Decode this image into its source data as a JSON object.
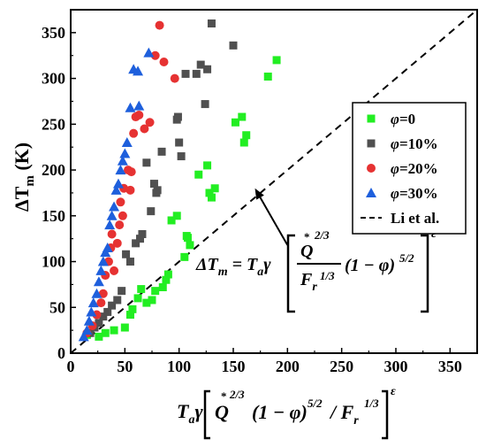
{
  "chart_data": {
    "type": "scatter",
    "xlim": [
      0,
      375
    ],
    "ylim": [
      0,
      375
    ],
    "x_ticks": [
      "0",
      "50",
      "100",
      "150",
      "200",
      "250",
      "300",
      "350"
    ],
    "y_ticks": [
      "0",
      "50",
      "100",
      "150",
      "200",
      "250",
      "300",
      "350"
    ],
    "grid": false,
    "legend_position": "right",
    "series": [
      {
        "name": "φ=0",
        "marker": "square",
        "color": "#22ee22",
        "points": [
          [
            15,
            20
          ],
          [
            26,
            18
          ],
          [
            32,
            22
          ],
          [
            40,
            25
          ],
          [
            50,
            28
          ],
          [
            55,
            42
          ],
          [
            57,
            48
          ],
          [
            62,
            60
          ],
          [
            65,
            70
          ],
          [
            70,
            55
          ],
          [
            75,
            58
          ],
          [
            78,
            68
          ],
          [
            85,
            72
          ],
          [
            88,
            80
          ],
          [
            90,
            86
          ],
          [
            93,
            145
          ],
          [
            98,
            150
          ],
          [
            105,
            105
          ],
          [
            107,
            128
          ],
          [
            108,
            126
          ],
          [
            110,
            118
          ],
          [
            118,
            195
          ],
          [
            126,
            205
          ],
          [
            128,
            175
          ],
          [
            133,
            180
          ],
          [
            130,
            170
          ],
          [
            152,
            252
          ],
          [
            158,
            258
          ],
          [
            160,
            230
          ],
          [
            162,
            238
          ],
          [
            182,
            302
          ],
          [
            190,
            320
          ]
        ]
      },
      {
        "name": "φ=10%",
        "marker": "square",
        "color": "#505050",
        "points": [
          [
            18,
            22
          ],
          [
            22,
            28
          ],
          [
            26,
            33
          ],
          [
            30,
            40
          ],
          [
            34,
            45
          ],
          [
            38,
            52
          ],
          [
            43,
            58
          ],
          [
            47,
            68
          ],
          [
            51,
            108
          ],
          [
            55,
            100
          ],
          [
            60,
            120
          ],
          [
            64,
            125
          ],
          [
            66,
            130
          ],
          [
            70,
            208
          ],
          [
            74,
            155
          ],
          [
            77,
            185
          ],
          [
            79,
            175
          ],
          [
            80,
            178
          ],
          [
            84,
            220
          ],
          [
            98,
            255
          ],
          [
            99,
            258
          ],
          [
            100,
            230
          ],
          [
            102,
            215
          ],
          [
            106,
            305
          ],
          [
            116,
            305
          ],
          [
            120,
            315
          ],
          [
            124,
            272
          ],
          [
            126,
            310
          ],
          [
            130,
            360
          ],
          [
            150,
            336
          ]
        ]
      },
      {
        "name": "φ=20%",
        "marker": "circle",
        "color": "#e63232",
        "points": [
          [
            15,
            22
          ],
          [
            20,
            30
          ],
          [
            24,
            42
          ],
          [
            28,
            55
          ],
          [
            30,
            65
          ],
          [
            32,
            85
          ],
          [
            35,
            100
          ],
          [
            37,
            115
          ],
          [
            38,
            130
          ],
          [
            40,
            90
          ],
          [
            43,
            120
          ],
          [
            45,
            140
          ],
          [
            46,
            165
          ],
          [
            48,
            150
          ],
          [
            49,
            180
          ],
          [
            53,
            200
          ],
          [
            55,
            178
          ],
          [
            56,
            198
          ],
          [
            58,
            240
          ],
          [
            60,
            258
          ],
          [
            63,
            260
          ],
          [
            68,
            245
          ],
          [
            73,
            252
          ],
          [
            78,
            325
          ],
          [
            82,
            358
          ],
          [
            86,
            318
          ],
          [
            96,
            300
          ]
        ]
      },
      {
        "name": "φ=30%",
        "marker": "triangle",
        "color": "#1e5fdc",
        "points": [
          [
            12,
            18
          ],
          [
            15,
            25
          ],
          [
            17,
            35
          ],
          [
            19,
            45
          ],
          [
            21,
            55
          ],
          [
            24,
            65
          ],
          [
            26,
            78
          ],
          [
            28,
            90
          ],
          [
            30,
            100
          ],
          [
            32,
            110
          ],
          [
            34,
            115
          ],
          [
            36,
            140
          ],
          [
            38,
            150
          ],
          [
            40,
            160
          ],
          [
            42,
            178
          ],
          [
            44,
            185
          ],
          [
            46,
            200
          ],
          [
            48,
            210
          ],
          [
            50,
            218
          ],
          [
            52,
            230
          ],
          [
            55,
            268
          ],
          [
            58,
            310
          ],
          [
            62,
            308
          ],
          [
            63,
            270
          ],
          [
            72,
            328
          ]
        ]
      }
    ],
    "reference_line": {
      "name": "Li et al.",
      "style": "dashed",
      "color": "#000000",
      "x": [
        0,
        375
      ],
      "y": [
        0,
        375
      ]
    },
    "annotation": {
      "arrow_from": [
        200,
        118
      ],
      "arrow_to": [
        170,
        180
      ]
    }
  },
  "legend_entries": [
    {
      "label": "φ=0",
      "marker": "square",
      "color": "#22ee22"
    },
    {
      "label": "φ=10%",
      "marker": "square",
      "color": "#505050"
    },
    {
      "label": "φ=20%",
      "marker": "circle",
      "color": "#e63232"
    },
    {
      "label": "φ=30%",
      "marker": "triangle",
      "color": "#1e5fdc"
    },
    {
      "label": "Li et al.",
      "marker": "dash",
      "color": "#000000"
    }
  ]
}
